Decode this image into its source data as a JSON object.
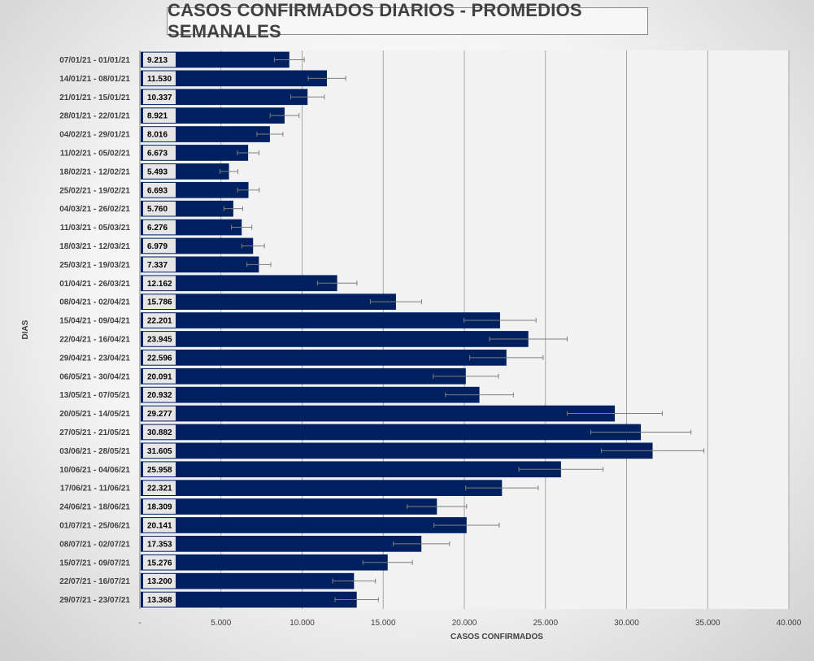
{
  "chart_data": {
    "type": "bar",
    "orientation": "horizontal",
    "title": "CASOS CONFIRMADOS DIARIOS - PROMEDIOS SEMANALES",
    "xlabel": "CASOS CONFIRMADOS",
    "ylabel": "DIAS",
    "xlim": [
      0,
      40000
    ],
    "x_ticks": [
      0,
      5000,
      10000,
      15000,
      20000,
      25000,
      30000,
      35000,
      40000
    ],
    "x_tick_labels": [
      "-",
      "5.000",
      "10.000",
      "15.000",
      "20.000",
      "25.000",
      "30.000",
      "35.000",
      "40.000"
    ],
    "grid": "vertical",
    "bar_color": "#002060",
    "error_bars": "±10%",
    "categories": [
      "07/01/21 - 01/01/21",
      "14/01/21 - 08/01/21",
      "21/01/21 - 15/01/21",
      "28/01/21 - 22/01/21",
      "04/02/21 - 29/01/21",
      "11/02/21 - 05/02/21",
      "18/02/21 - 12/02/21",
      "25/02/21 - 19/02/21",
      "04/03/21 - 26/02/21",
      "11/03/21 - 05/03/21",
      "18/03/21 - 12/03/21",
      "25/03/21 - 19/03/21",
      "01/04/21 - 26/03/21",
      "08/04/21 - 02/04/21",
      "15/04/21 - 09/04/21",
      "22/04/21 - 16/04/21",
      "29/04/21 - 23/04/21",
      "06/05/21 - 30/04/21",
      "13/05/21 - 07/05/21",
      "20/05/21 - 14/05/21",
      "27/05/21 - 21/05/21",
      "03/06/21 - 28/05/21",
      "10/06/21 - 04/06/21",
      "17/06/21 - 11/06/21",
      "24/06/21 - 18/06/21",
      "01/07/21 - 25/06/21",
      "08/07/21 - 02/07/21",
      "15/07/21 - 09/07/21",
      "22/07/21 - 16/07/21",
      "29/07/21 - 23/07/21"
    ],
    "values": [
      9213,
      11530,
      10337,
      8921,
      8016,
      6673,
      5493,
      6693,
      5760,
      6276,
      6979,
      7337,
      12162,
      15786,
      22201,
      23945,
      22596,
      20091,
      20932,
      29277,
      30882,
      31605,
      25958,
      22321,
      18309,
      20141,
      17353,
      15276,
      13200,
      13368
    ],
    "value_labels": [
      "9.213",
      "11.530",
      "10.337",
      "8.921",
      "8.016",
      "6.673",
      "5.493",
      "6.693",
      "5.760",
      "6.276",
      "6.979",
      "7.337",
      "12.162",
      "15.786",
      "22.201",
      "23.945",
      "22.596",
      "20.091",
      "20.932",
      "29.277",
      "30.882",
      "31.605",
      "25.958",
      "22.321",
      "18.309",
      "20.141",
      "17.353",
      "15.276",
      "13.200",
      "13.368"
    ]
  }
}
